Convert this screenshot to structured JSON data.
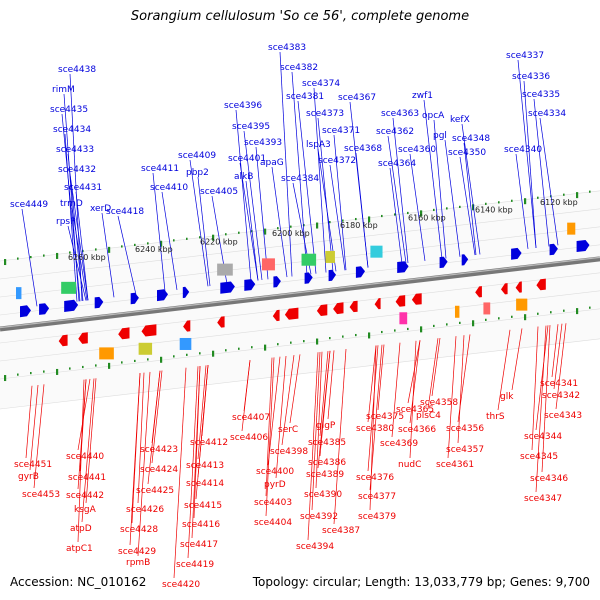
{
  "title": "Sorangium cellulosum 'So ce 56', complete genome",
  "footer": {
    "accession": "Accession: NC_010162",
    "topology": "Topology: circular; Length: 13,033,779 bp; Genes: 9,700"
  },
  "colors": {
    "forward": "#0000dd",
    "reverse": "#ee0000",
    "tick": "#228b22",
    "backbone": "#777777"
  },
  "scale_labels": [
    "6260 kbp",
    "6240 kbp",
    "6220 kbp",
    "6200 kbp",
    "6180 kbp",
    "6160 kbp",
    "6140 kbp",
    "6120 kbp"
  ],
  "top_labels": [
    "sce4438",
    "rimM",
    "sce4435",
    "sce4434",
    "sce4433",
    "sce4432",
    "sce4431",
    "trmD",
    "rpsP",
    "xerD",
    "sce4449",
    "sce4418",
    "sce4411",
    "sce4410",
    "sce4409",
    "pbp2",
    "sce4405",
    "sce4401",
    "alkB",
    "sce4396",
    "sce4395",
    "sce4393",
    "apaG",
    "sce4384",
    "sce4383",
    "sce4382",
    "sce4381",
    "sce4374",
    "sce4373",
    "lspA3",
    "sce4371",
    "sce4372",
    "sce4367",
    "sce4368",
    "sce4363",
    "sce4362",
    "sce4364",
    "sce4360",
    "zwf1",
    "opcA",
    "pgl",
    "kefX",
    "sce4348",
    "sce4350",
    "sce4337",
    "sce4336",
    "sce4335",
    "sce4334",
    "sce4340"
  ],
  "bottom_labels": [
    "sce4451",
    "gyrB",
    "sce4453",
    "sce4440",
    "sce4441",
    "sce4442",
    "ksgA",
    "atpD",
    "atpC1",
    "sce4423",
    "sce4424",
    "sce4425",
    "sce4426",
    "sce4428",
    "sce4429",
    "rpmB",
    "sce4412",
    "sce4413",
    "sce4414",
    "sce4415",
    "sce4416",
    "sce4417",
    "sce4419",
    "sce4420",
    "sce4407",
    "sce4406",
    "pyrD",
    "sce4400",
    "sce4403",
    "sce4404",
    "serC",
    "sce4398",
    "glgP",
    "sce4385",
    "sce4386",
    "sce4389",
    "sce4390",
    "sce4392",
    "sce4394",
    "sce4387",
    "sce4375",
    "sce4380",
    "sce4376",
    "sce4377",
    "sce4379",
    "sce4369",
    "sce4366",
    "sce4365",
    "nudC",
    "sce4358",
    "plsC4",
    "sce4356",
    "sce4357",
    "sce4361",
    "glk",
    "thrS",
    "sce4341",
    "sce4342",
    "sce4343",
    "sce4344",
    "sce4345",
    "sce4346",
    "sce4347"
  ]
}
